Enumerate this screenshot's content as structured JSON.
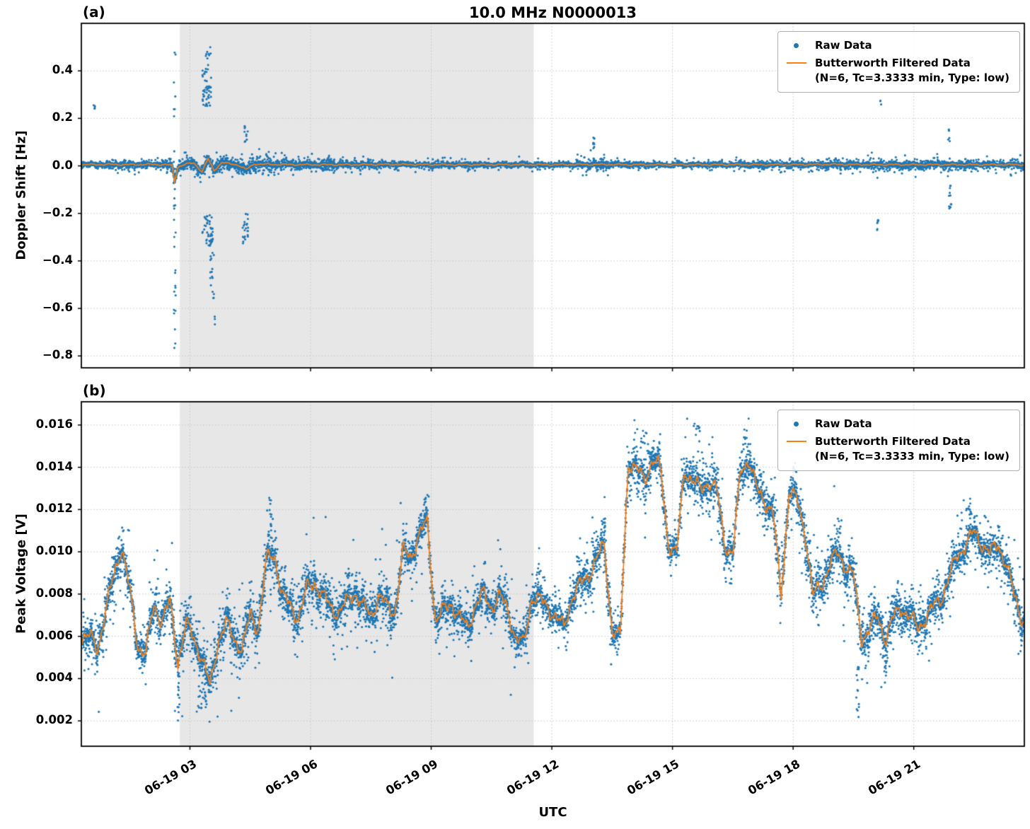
{
  "chart_data": {
    "type": "scatter+line",
    "title": "10.0 MHz N0000013",
    "xlabel": "UTC",
    "xlim": [
      0.3,
      23.75
    ],
    "xticks": [
      3,
      6,
      9,
      12,
      15,
      18,
      21
    ],
    "xtick_labels": [
      "06-19 03",
      "06-19 06",
      "06-19 09",
      "06-19 12",
      "06-19 15",
      "06-19 18",
      "06-19 21"
    ],
    "grid": "dotted",
    "legend_position": "upper right",
    "shaded_region": {
      "x0": 2.75,
      "x1": 11.55,
      "color": "#e7e7e7"
    },
    "colors": {
      "raw": "#1f77b4",
      "filtered": "#ff7f0e",
      "grid": "#c4c4c4",
      "axis": "#000000"
    },
    "legend": {
      "raw_label": "Raw Data",
      "filtered_label": "Butterworth Filtered Data",
      "filtered_sublabel": "(N=6, Tc=3.3333 min, Type: low)"
    },
    "panels": [
      {
        "label": "(a)",
        "ylabel": "Doppler Shift [Hz]",
        "ylim": [
          -0.85,
          0.6
        ],
        "yticks": [
          0.4,
          0.2,
          0.0,
          -0.2,
          -0.4,
          -0.6,
          -0.8
        ],
        "ytick_labels": [
          "0.4",
          "0.2",
          "0.0",
          "−0.2",
          "−0.4",
          "−0.6",
          "−0.8"
        ],
        "line_wiggle_amp": 0.004,
        "filtered_line": {
          "x": [
            0.3,
            1.0,
            1.5,
            2.0,
            2.4,
            2.55,
            2.62,
            2.7,
            2.9,
            3.1,
            3.3,
            3.45,
            3.6,
            3.8,
            4.0,
            4.2,
            4.4,
            4.6,
            5.0,
            6,
            7,
            8,
            9,
            10,
            11,
            12,
            13,
            14,
            15,
            16,
            17,
            18,
            19,
            20,
            21,
            22,
            23,
            23.75
          ],
          "y": [
            0.005,
            0.006,
            0.005,
            0.006,
            0.005,
            0.002,
            -0.065,
            -0.005,
            0.008,
            0.012,
            -0.025,
            0.03,
            -0.02,
            0.015,
            0.008,
            0.004,
            -0.015,
            0.008,
            0.006,
            0.005,
            0.005,
            0.006,
            0.005,
            0.005,
            0.005,
            0.005,
            0.006,
            0.005,
            0.005,
            0.005,
            0.005,
            0.005,
            0.006,
            0.005,
            0.005,
            0.005,
            0.005,
            0.005
          ]
        },
        "raw": {
          "points_per_hour": 400,
          "seed": 7,
          "spread_segments": [
            [
              0.3,
              0.9,
              0.012
            ],
            [
              0.9,
              2.4,
              0.018
            ],
            [
              2.4,
              2.9,
              0.03
            ],
            [
              2.9,
              5.2,
              0.032
            ],
            [
              5.2,
              6.6,
              0.025
            ],
            [
              6.6,
              8.2,
              0.018
            ],
            [
              8.2,
              12.6,
              0.012
            ],
            [
              12.6,
              13.4,
              0.022
            ],
            [
              13.4,
              16.8,
              0.012
            ],
            [
              16.8,
              18.8,
              0.014
            ],
            [
              18.8,
              21.2,
              0.02
            ],
            [
              21.2,
              22.3,
              0.022
            ],
            [
              22.3,
              23.75,
              0.018
            ]
          ]
        },
        "outlier_clusters": [
          {
            "t": 0.62,
            "w": 0.04,
            "n": 5,
            "y0": 0.22,
            "y1": 0.26
          },
          {
            "t": 2.62,
            "w": 0.05,
            "n": 26,
            "y0": -0.58,
            "y1": 0.52
          },
          {
            "t": 2.62,
            "w": 0.04,
            "n": 6,
            "y0": -0.78,
            "y1": -0.6
          },
          {
            "t": 3.42,
            "w": 0.22,
            "n": 55,
            "y0": 0.23,
            "y1": 0.51
          },
          {
            "t": 3.45,
            "w": 0.28,
            "n": 45,
            "y0": -0.34,
            "y1": -0.2
          },
          {
            "t": 3.55,
            "w": 0.12,
            "n": 16,
            "y0": -0.56,
            "y1": -0.36
          },
          {
            "t": 3.62,
            "w": 0.03,
            "n": 3,
            "y0": -0.7,
            "y1": -0.62
          },
          {
            "t": 4.38,
            "w": 0.14,
            "n": 22,
            "y0": -0.33,
            "y1": -0.2
          },
          {
            "t": 4.4,
            "w": 0.1,
            "n": 10,
            "y0": 0.1,
            "y1": 0.18
          },
          {
            "t": 13.05,
            "w": 0.06,
            "n": 9,
            "y0": 0.07,
            "y1": 0.12
          },
          {
            "t": 20.18,
            "w": 0.03,
            "n": 3,
            "y0": 0.25,
            "y1": 0.28
          },
          {
            "t": 20.1,
            "w": 0.05,
            "n": 6,
            "y0": -0.27,
            "y1": -0.22
          },
          {
            "t": 21.9,
            "w": 0.07,
            "n": 12,
            "y0": -0.18,
            "y1": -0.08
          },
          {
            "t": 21.88,
            "w": 0.05,
            "n": 6,
            "y0": 0.09,
            "y1": 0.16
          }
        ]
      },
      {
        "label": "(b)",
        "ylabel": "Peak Voltage [V]",
        "ylim": [
          0.0008,
          0.0171
        ],
        "yticks": [
          0.016,
          0.014,
          0.012,
          0.01,
          0.008,
          0.006,
          0.004,
          0.002
        ],
        "ytick_labels": [
          "0.016",
          "0.014",
          "0.012",
          "0.010",
          "0.008",
          "0.006",
          "0.004",
          "0.002"
        ],
        "line_wiggle_amp": 0.0005,
        "filtered_line": {
          "x": [
            0.5,
            0.7,
            0.9,
            1.1,
            1.3,
            1.5,
            1.7,
            1.9,
            2.1,
            2.3,
            2.5,
            2.7,
            2.9,
            3.1,
            3.3,
            3.5,
            3.7,
            3.9,
            4.1,
            4.3,
            4.5,
            4.7,
            4.9,
            5.1,
            5.3,
            5.5,
            5.7,
            5.9,
            6.1,
            6.3,
            6.5,
            6.7,
            6.9,
            7.1,
            7.3,
            7.5,
            7.7,
            7.9,
            8.1,
            8.3,
            8.5,
            8.7,
            8.9,
            9.1,
            9.3,
            9.5,
            9.7,
            9.9,
            10.1,
            10.3,
            10.5,
            10.7,
            10.9,
            11.1,
            11.3,
            11.5,
            11.7,
            11.9,
            12.1,
            12.3,
            12.5,
            12.7,
            12.9,
            13.1,
            13.3,
            13.5,
            13.7,
            13.9,
            14.1,
            14.3,
            14.5,
            14.7,
            14.9,
            15.1,
            15.3,
            15.5,
            15.7,
            15.9,
            16.1,
            16.3,
            16.5,
            16.7,
            16.9,
            17.1,
            17.3,
            17.5,
            17.7,
            17.9,
            18.1,
            18.3,
            18.5,
            18.7,
            18.9,
            19.1,
            19.3,
            19.5,
            19.7,
            19.9,
            20.1,
            20.3,
            20.5,
            20.7,
            20.9,
            21.1,
            21.3,
            21.5,
            21.7,
            21.9,
            22.1,
            22.3,
            22.5,
            22.7,
            22.9,
            23.1,
            23.3,
            23.5,
            23.75
          ],
          "y": [
            0.006,
            0.0054,
            0.0072,
            0.0088,
            0.0103,
            0.0082,
            0.0056,
            0.0052,
            0.0074,
            0.0068,
            0.0076,
            0.0048,
            0.0066,
            0.0059,
            0.005,
            0.0036,
            0.0058,
            0.0066,
            0.0059,
            0.0054,
            0.007,
            0.0064,
            0.0096,
            0.0099,
            0.0079,
            0.0074,
            0.0069,
            0.0082,
            0.0086,
            0.0079,
            0.0074,
            0.0071,
            0.0076,
            0.0081,
            0.0074,
            0.007,
            0.0079,
            0.0074,
            0.0072,
            0.01,
            0.0098,
            0.0108,
            0.0114,
            0.0068,
            0.0072,
            0.0076,
            0.0069,
            0.0064,
            0.0075,
            0.008,
            0.0074,
            0.0079,
            0.0073,
            0.0059,
            0.0056,
            0.0079,
            0.0077,
            0.0074,
            0.0069,
            0.0064,
            0.0079,
            0.0084,
            0.0089,
            0.0096,
            0.0103,
            0.0063,
            0.0059,
            0.0143,
            0.0139,
            0.0134,
            0.0144,
            0.0139,
            0.0104,
            0.0099,
            0.0139,
            0.0134,
            0.0129,
            0.0134,
            0.0129,
            0.0104,
            0.0099,
            0.0139,
            0.0144,
            0.0129,
            0.0124,
            0.0119,
            0.0079,
            0.0129,
            0.0124,
            0.0109,
            0.0079,
            0.0084,
            0.0094,
            0.0099,
            0.0094,
            0.0089,
            0.0059,
            0.0064,
            0.0069,
            0.0059,
            0.0069,
            0.0074,
            0.0069,
            0.0064,
            0.0069,
            0.0074,
            0.0079,
            0.0089,
            0.0099,
            0.0104,
            0.0109,
            0.0104,
            0.0099,
            0.0104,
            0.0094,
            0.0079,
            0.0066
          ]
        },
        "raw": {
          "points_per_hour": 400,
          "seed": 11,
          "spread_segments": [
            [
              0.3,
              2.5,
              0.0012
            ],
            [
              2.5,
              6.2,
              0.0015
            ],
            [
              6.2,
              8.2,
              0.0013
            ],
            [
              8.2,
              12.5,
              0.0011
            ],
            [
              12.5,
              14.0,
              0.0013
            ],
            [
              14.0,
              17.5,
              0.0012
            ],
            [
              17.5,
              20.5,
              0.0013
            ],
            [
              20.5,
              23.75,
              0.0012
            ]
          ]
        },
        "outlier_clusters": [
          {
            "t": 2.72,
            "w": 0.05,
            "n": 12,
            "y0": 0.0019,
            "y1": 0.0042
          },
          {
            "t": 3.3,
            "w": 0.2,
            "n": 22,
            "y0": 0.0026,
            "y1": 0.0042
          },
          {
            "t": 5.0,
            "w": 0.06,
            "n": 12,
            "y0": 0.0112,
            "y1": 0.0128
          },
          {
            "t": 8.85,
            "w": 0.06,
            "n": 8,
            "y0": 0.0118,
            "y1": 0.0127
          },
          {
            "t": 13.3,
            "w": 0.05,
            "n": 8,
            "y0": 0.0108,
            "y1": 0.0116
          },
          {
            "t": 14.3,
            "w": 0.15,
            "n": 8,
            "y0": 0.015,
            "y1": 0.0158
          },
          {
            "t": 15.6,
            "w": 0.2,
            "n": 10,
            "y0": 0.0152,
            "y1": 0.0161
          },
          {
            "t": 16.8,
            "w": 0.1,
            "n": 6,
            "y0": 0.015,
            "y1": 0.016
          },
          {
            "t": 19.6,
            "w": 0.08,
            "n": 14,
            "y0": 0.0021,
            "y1": 0.0046
          },
          {
            "t": 20.3,
            "w": 0.08,
            "n": 8,
            "y0": 0.0034,
            "y1": 0.005
          },
          {
            "t": 22.4,
            "w": 0.1,
            "n": 8,
            "y0": 0.0118,
            "y1": 0.0126
          }
        ]
      }
    ]
  }
}
